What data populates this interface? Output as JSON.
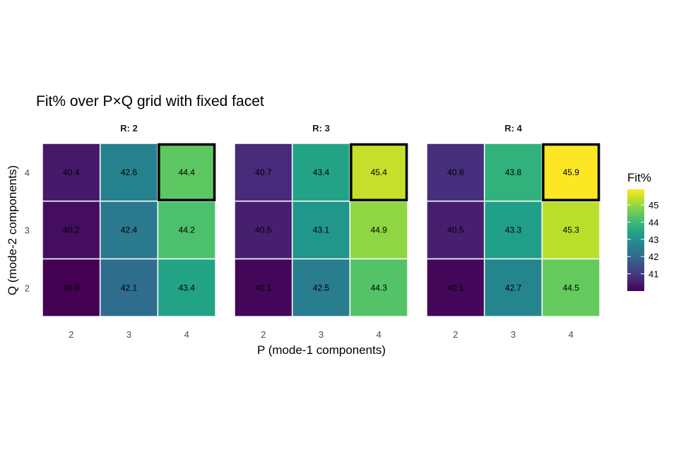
{
  "chart_data": {
    "type": "heatmap",
    "title": "Fit% over P×Q grid with fixed facet",
    "xlabel": "P (mode-1 components)",
    "ylabel": "Q (mode-2 components)",
    "x_categories": [
      "2",
      "3",
      "4"
    ],
    "y_categories": [
      "2",
      "3",
      "4"
    ],
    "legend": {
      "title": "Fit%",
      "placement": "right",
      "ticks": [
        41,
        42,
        43,
        44,
        45
      ],
      "range": [
        40.0,
        45.9
      ]
    },
    "color_low": "#440154",
    "color_high": "#FDE725",
    "highlight_color": "#000000",
    "facets": [
      {
        "label": "R: 2",
        "cells": [
          {
            "p": "2",
            "q": "2",
            "value": 40.0,
            "label": "40.0"
          },
          {
            "p": "3",
            "q": "2",
            "value": 42.1,
            "label": "42.1"
          },
          {
            "p": "4",
            "q": "2",
            "value": 43.4,
            "label": "43.4"
          },
          {
            "p": "2",
            "q": "3",
            "value": 40.2,
            "label": "40.2"
          },
          {
            "p": "3",
            "q": "3",
            "value": 42.4,
            "label": "42.4"
          },
          {
            "p": "4",
            "q": "3",
            "value": 44.2,
            "label": "44.2"
          },
          {
            "p": "2",
            "q": "4",
            "value": 40.4,
            "label": "40.4"
          },
          {
            "p": "3",
            "q": "4",
            "value": 42.6,
            "label": "42.6"
          },
          {
            "p": "4",
            "q": "4",
            "value": 44.4,
            "label": "44.4",
            "highlight": true
          }
        ]
      },
      {
        "label": "R: 3",
        "cells": [
          {
            "p": "2",
            "q": "2",
            "value": 40.1,
            "label": "40.1"
          },
          {
            "p": "3",
            "q": "2",
            "value": 42.5,
            "label": "42.5"
          },
          {
            "p": "4",
            "q": "2",
            "value": 44.3,
            "label": "44.3"
          },
          {
            "p": "2",
            "q": "3",
            "value": 40.5,
            "label": "40.5"
          },
          {
            "p": "3",
            "q": "3",
            "value": 43.1,
            "label": "43.1"
          },
          {
            "p": "4",
            "q": "3",
            "value": 44.9,
            "label": "44.9"
          },
          {
            "p": "2",
            "q": "4",
            "value": 40.7,
            "label": "40.7"
          },
          {
            "p": "3",
            "q": "4",
            "value": 43.4,
            "label": "43.4"
          },
          {
            "p": "4",
            "q": "4",
            "value": 45.4,
            "label": "45.4",
            "highlight": true
          }
        ]
      },
      {
        "label": "R: 4",
        "cells": [
          {
            "p": "2",
            "q": "2",
            "value": 40.1,
            "label": "40.1"
          },
          {
            "p": "3",
            "q": "2",
            "value": 42.7,
            "label": "42.7"
          },
          {
            "p": "4",
            "q": "2",
            "value": 44.5,
            "label": "44.5"
          },
          {
            "p": "2",
            "q": "3",
            "value": 40.5,
            "label": "40.5"
          },
          {
            "p": "3",
            "q": "3",
            "value": 43.3,
            "label": "43.3"
          },
          {
            "p": "4",
            "q": "3",
            "value": 45.3,
            "label": "45.3"
          },
          {
            "p": "2",
            "q": "4",
            "value": 40.8,
            "label": "40.8"
          },
          {
            "p": "3",
            "q": "4",
            "value": 43.8,
            "label": "43.8"
          },
          {
            "p": "4",
            "q": "4",
            "value": 45.9,
            "label": "45.9",
            "highlight": true
          }
        ]
      }
    ]
  }
}
